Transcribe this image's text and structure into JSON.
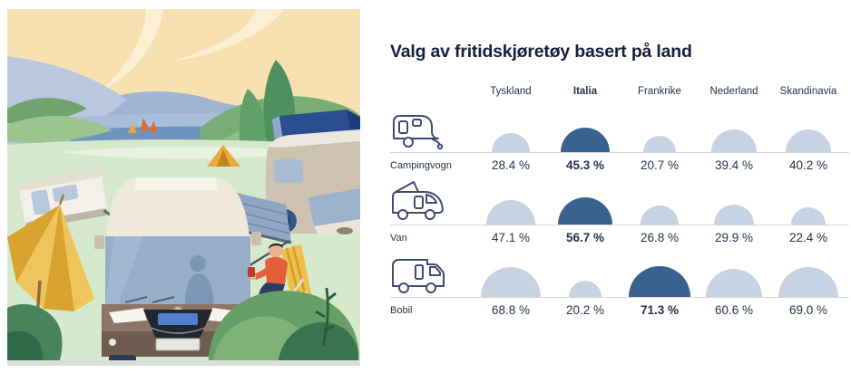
{
  "chart_data": {
    "type": "proportional-semicircle",
    "title": "Valg av fritidskjøretøy basert på land",
    "categories": [
      "Tyskland",
      "Italia",
      "Frankrike",
      "Nederland",
      "Skandinavia"
    ],
    "bold_category": "Italia",
    "series": [
      {
        "name": "Campingvogn",
        "icon": "caravan-icon",
        "values": [
          28.4,
          45.3,
          20.7,
          39.4,
          40.2
        ],
        "labels": [
          "28.4 %",
          "45.3 %",
          "20.7 %",
          "39.4 %",
          "40.2 %"
        ],
        "highlight": "Italia"
      },
      {
        "name": "Van",
        "icon": "campervan-icon",
        "values": [
          47.1,
          56.7,
          26.8,
          29.9,
          22.4
        ],
        "labels": [
          "47.1 %",
          "56.7 %",
          "26.8 %",
          "29.9 %",
          "22.4 %"
        ],
        "highlight": "Italia"
      },
      {
        "name": "Bobil",
        "icon": "motorhome-icon",
        "values": [
          68.8,
          20.2,
          71.3,
          60.6,
          69.0
        ],
        "labels": [
          "68.8 %",
          "20.2 %",
          "71.3 %",
          "60.6 %",
          "69.0 %"
        ],
        "highlight": "Frankrike"
      }
    ],
    "value_suffix": " %",
    "ylim": [
      0,
      100
    ],
    "legend_position": "none",
    "colors": {
      "bubble": "#c6d3e2",
      "bubble_highlight": "#3a628f",
      "baseline": "#d6d6d6",
      "text": "#28324f",
      "title": "#14203f"
    }
  },
  "illustration": {
    "description": "Illustrated campsite by a lake: motorhome with awning, caravan, campervan with roof tent, person in camping chair, yellow parasol, tent, sailboats, mountains and trees"
  }
}
